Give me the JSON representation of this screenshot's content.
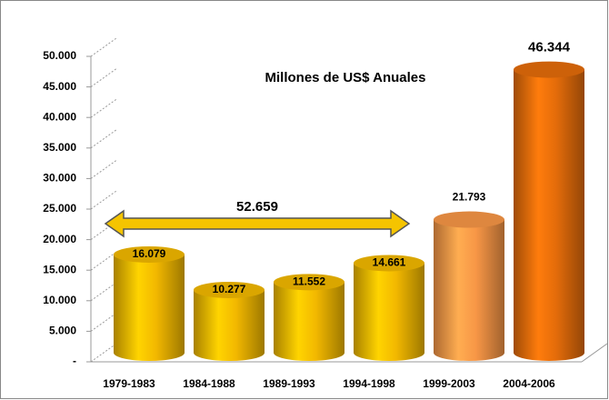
{
  "chart_data": {
    "type": "bar3d",
    "title": "Millones de US$ Anuales",
    "annotation": "52.659",
    "categories": [
      "1979-1983",
      "1984-1988",
      "1989-1993",
      "1994-1998",
      "1999-2003",
      "2004-2006"
    ],
    "values": [
      16079,
      10277,
      11552,
      14661,
      21793,
      46344
    ],
    "value_labels": [
      "16.079",
      "10.277",
      "11.552",
      "14.661",
      "21.793",
      "46.344"
    ],
    "colors": [
      "#f2b800",
      "#f2b800",
      "#f2b800",
      "#f2b800",
      "#f79646",
      "#e46c0a"
    ],
    "ylim": [
      0,
      50000
    ],
    "yticks": [
      {
        "value": 0,
        "label": "-"
      },
      {
        "value": 5000,
        "label": "5.000"
      },
      {
        "value": 10000,
        "label": "10.000"
      },
      {
        "value": 15000,
        "label": "15.000"
      },
      {
        "value": 20000,
        "label": "20.000"
      },
      {
        "value": 25000,
        "label": "25.000"
      },
      {
        "value": 30000,
        "label": "30.000"
      },
      {
        "value": 35000,
        "label": "35.000"
      },
      {
        "value": 40000,
        "label": "40.000"
      },
      {
        "value": 45000,
        "label": "45.000"
      },
      {
        "value": 50000,
        "label": "50.000"
      }
    ],
    "grid": true
  }
}
